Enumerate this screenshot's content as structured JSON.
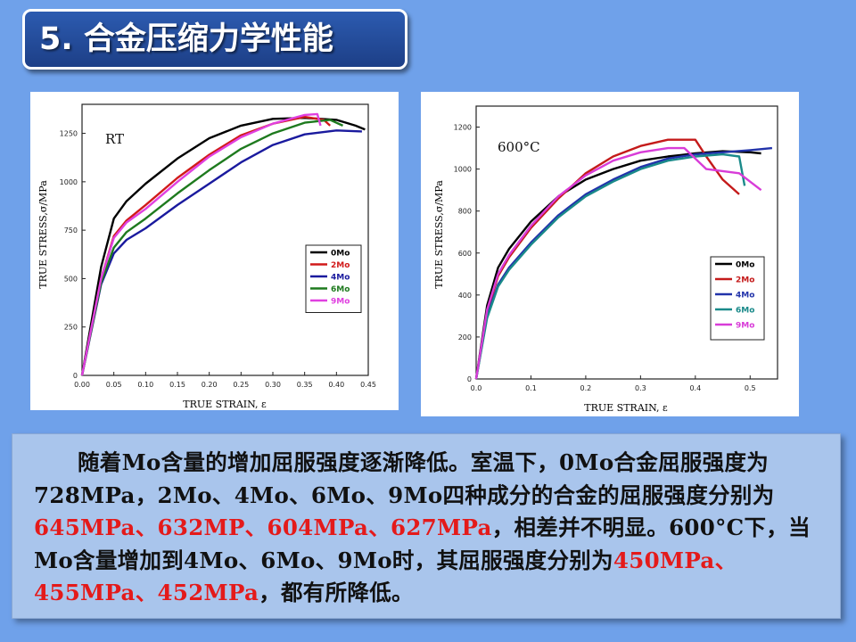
{
  "title": "5. 合金压缩力学性能",
  "charts": [
    {
      "annotation": "RT",
      "chart_data": {
        "type": "line",
        "title": "RT",
        "xlabel": "TRUE STRAIN, ε",
        "ylabel": "TRUE STRESS,σ/MPa",
        "xlim": [
          0,
          0.45
        ],
        "ylim": [
          0,
          1400
        ],
        "xticks": [
          "0.00",
          "0.05",
          "0.10",
          "0.15",
          "0.20",
          "0.25",
          "0.30",
          "0.35",
          "0.40",
          "0.45"
        ],
        "yticks": [
          "0",
          "250",
          "500",
          "750",
          "1000",
          "1250"
        ],
        "legend_position": "right",
        "series": [
          {
            "name": "0Mo",
            "color": "#000000",
            "x": [
              0,
              0.03,
              0.05,
              0.07,
              0.1,
              0.15,
              0.2,
              0.25,
              0.3,
              0.35,
              0.4,
              0.43,
              0.445
            ],
            "y": [
              0,
              560,
              810,
              900,
              990,
              1120,
              1225,
              1290,
              1325,
              1330,
              1320,
              1290,
              1270
            ]
          },
          {
            "name": "2Mo",
            "color": "#d11a1a",
            "x": [
              0,
              0.03,
              0.05,
              0.07,
              0.1,
              0.15,
              0.2,
              0.25,
              0.3,
              0.35,
              0.38,
              0.39
            ],
            "y": [
              0,
              500,
              720,
              800,
              880,
              1020,
              1140,
              1240,
              1300,
              1335,
              1320,
              1290
            ]
          },
          {
            "name": "4Mo",
            "color": "#1a1a9e",
            "x": [
              0,
              0.03,
              0.05,
              0.07,
              0.1,
              0.15,
              0.2,
              0.25,
              0.3,
              0.35,
              0.4,
              0.44
            ],
            "y": [
              0,
              470,
              630,
              700,
              760,
              880,
              990,
              1100,
              1190,
              1245,
              1265,
              1260
            ]
          },
          {
            "name": "6Mo",
            "color": "#1e7a1e",
            "x": [
              0,
              0.03,
              0.05,
              0.07,
              0.1,
              0.15,
              0.2,
              0.25,
              0.3,
              0.35,
              0.39,
              0.41
            ],
            "y": [
              0,
              480,
              660,
              740,
              810,
              940,
              1060,
              1170,
              1250,
              1305,
              1320,
              1290
            ]
          },
          {
            "name": "9Mo",
            "color": "#e040e0",
            "x": [
              0,
              0.03,
              0.05,
              0.07,
              0.1,
              0.15,
              0.2,
              0.25,
              0.3,
              0.35,
              0.37,
              0.375
            ],
            "y": [
              0,
              500,
              710,
              790,
              860,
              1000,
              1130,
              1230,
              1300,
              1345,
              1350,
              1290
            ]
          }
        ]
      }
    },
    {
      "annotation": "600°C",
      "chart_data": {
        "type": "line",
        "title": "600°C",
        "xlabel": "TRUE STRAIN, ε",
        "ylabel": "TRUE STRESS,σ/MPa",
        "xlim": [
          0,
          0.55
        ],
        "ylim": [
          0,
          1300
        ],
        "xticks": [
          "0.0",
          "0.1",
          "0.2",
          "0.3",
          "0.4",
          "0.5"
        ],
        "yticks": [
          "0",
          "200",
          "400",
          "600",
          "800",
          "1000",
          "1200"
        ],
        "legend_position": "bottom-right",
        "series": [
          {
            "name": "0Mo",
            "color": "#000000",
            "x": [
              0,
              0.02,
              0.04,
              0.06,
              0.1,
              0.15,
              0.2,
              0.25,
              0.3,
              0.35,
              0.4,
              0.45,
              0.5,
              0.52
            ],
            "y": [
              0,
              350,
              530,
              620,
              750,
              870,
              950,
              1000,
              1040,
              1060,
              1075,
              1085,
              1080,
              1075
            ]
          },
          {
            "name": "2Mo",
            "color": "#c41a1a",
            "x": [
              0,
              0.02,
              0.04,
              0.06,
              0.1,
              0.15,
              0.2,
              0.25,
              0.3,
              0.35,
              0.4,
              0.42,
              0.45,
              0.48
            ],
            "y": [
              0,
              320,
              490,
              580,
              720,
              860,
              980,
              1060,
              1110,
              1140,
              1140,
              1060,
              950,
              880
            ]
          },
          {
            "name": "4Mo",
            "color": "#2233aa",
            "x": [
              0,
              0.02,
              0.04,
              0.06,
              0.1,
              0.15,
              0.2,
              0.25,
              0.3,
              0.35,
              0.4,
              0.45,
              0.5,
              0.54
            ],
            "y": [
              0,
              300,
              450,
              530,
              650,
              780,
              880,
              950,
              1010,
              1050,
              1070,
              1080,
              1090,
              1100
            ]
          },
          {
            "name": "6Mo",
            "color": "#1a8a8a",
            "x": [
              0,
              0.02,
              0.04,
              0.06,
              0.1,
              0.15,
              0.2,
              0.25,
              0.3,
              0.35,
              0.4,
              0.45,
              0.48,
              0.49
            ],
            "y": [
              0,
              290,
              440,
              520,
              640,
              770,
              870,
              940,
              1000,
              1040,
              1060,
              1070,
              1060,
              920
            ]
          },
          {
            "name": "9Mo",
            "color": "#d83cd8",
            "x": [
              0,
              0.02,
              0.04,
              0.06,
              0.1,
              0.15,
              0.2,
              0.25,
              0.3,
              0.35,
              0.38,
              0.42,
              0.48,
              0.52
            ],
            "y": [
              0,
              330,
              500,
              590,
              730,
              870,
              970,
              1040,
              1080,
              1100,
              1100,
              1000,
              980,
              900
            ]
          }
        ]
      }
    }
  ],
  "paragraph": [
    {
      "text": "随着Mo含量的增加屈服强度逐渐降低。室温下，0Mo合金屈服强度为728MPa，2Mo、4Mo、6Mo、9Mo四种成分的合金的屈服强度分别为",
      "highlight": false
    },
    {
      "text": "645MPa、632MP、604MPa、627MPa",
      "highlight": true
    },
    {
      "text": "，相差并不明显。600°C下，当Mo含量增加到4Mo、6Mo、9Mo时，其屈服强度分别为",
      "highlight": false
    },
    {
      "text": "450MPa、455MPa、452MPa",
      "highlight": true
    },
    {
      "text": "，都有所降低。",
      "highlight": false
    }
  ]
}
